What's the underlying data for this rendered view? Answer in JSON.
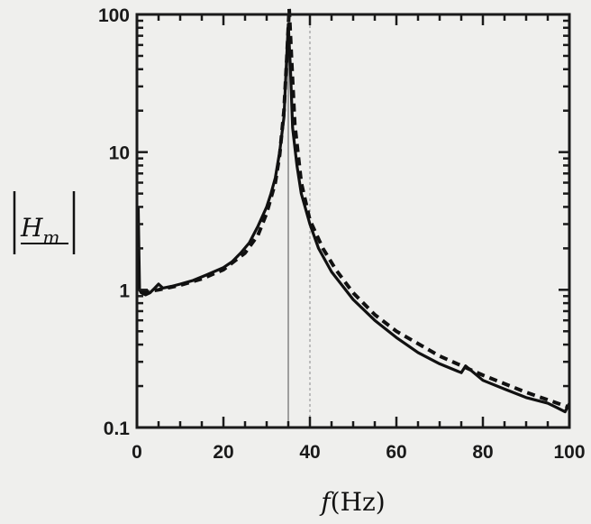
{
  "chart_data": {
    "type": "line",
    "title": "",
    "xlabel": "f(Hz)",
    "ylabel": "|H_m|",
    "xlim": [
      0,
      100
    ],
    "ylim": [
      0.1,
      100
    ],
    "yscale": "log",
    "grid": false,
    "x_ticks": [
      {
        "value": 0,
        "label": "0"
      },
      {
        "value": 20,
        "label": "20"
      },
      {
        "value": 40,
        "label": "40"
      },
      {
        "value": 60,
        "label": "60"
      },
      {
        "value": 80,
        "label": "80"
      },
      {
        "value": 100,
        "label": "100"
      }
    ],
    "y_ticks": [
      {
        "value": 0.1,
        "label": "0.1"
      },
      {
        "value": 1,
        "label": "1"
      },
      {
        "value": 10,
        "label": "10"
      },
      {
        "value": 100,
        "label": "100"
      }
    ],
    "reference_lines_x": [
      35,
      40
    ],
    "series": [
      {
        "style": "solid",
        "x": [
          0.3,
          0.6,
          1,
          2,
          3,
          4,
          5,
          6,
          8,
          10,
          13,
          16,
          20,
          22,
          24,
          26,
          28,
          30,
          31,
          32,
          33,
          34,
          34.5,
          35,
          35.5,
          36,
          37,
          38,
          40,
          42,
          45,
          50,
          55,
          60,
          65,
          70,
          75,
          76,
          80,
          85,
          90,
          95,
          97,
          99,
          100
        ],
        "y": [
          4.0,
          1.0,
          0.95,
          0.92,
          0.95,
          1.02,
          1.1,
          1.03,
          1.06,
          1.1,
          1.17,
          1.28,
          1.45,
          1.6,
          1.85,
          2.2,
          2.9,
          4.0,
          5.0,
          6.5,
          10.0,
          18.0,
          40.0,
          85.0,
          40.0,
          15.0,
          8.0,
          5.0,
          3.0,
          2.0,
          1.35,
          0.85,
          0.6,
          0.45,
          0.35,
          0.29,
          0.25,
          0.28,
          0.22,
          0.19,
          0.165,
          0.15,
          0.14,
          0.13,
          0.15
        ]
      },
      {
        "style": "dashed",
        "x": [
          1,
          5,
          10,
          15,
          20,
          25,
          28,
          30,
          32,
          33,
          34,
          34.6,
          35.2,
          35.8,
          36.5,
          38,
          40,
          43,
          46,
          50,
          55,
          60,
          70,
          80,
          90,
          100
        ],
        "y": [
          0.95,
          1.0,
          1.08,
          1.2,
          1.4,
          1.85,
          2.5,
          3.6,
          6.0,
          9.5,
          20.0,
          45.0,
          110.0,
          45.0,
          16.0,
          6.0,
          3.2,
          2.0,
          1.4,
          0.95,
          0.66,
          0.5,
          0.33,
          0.24,
          0.18,
          0.14
        ]
      }
    ]
  }
}
